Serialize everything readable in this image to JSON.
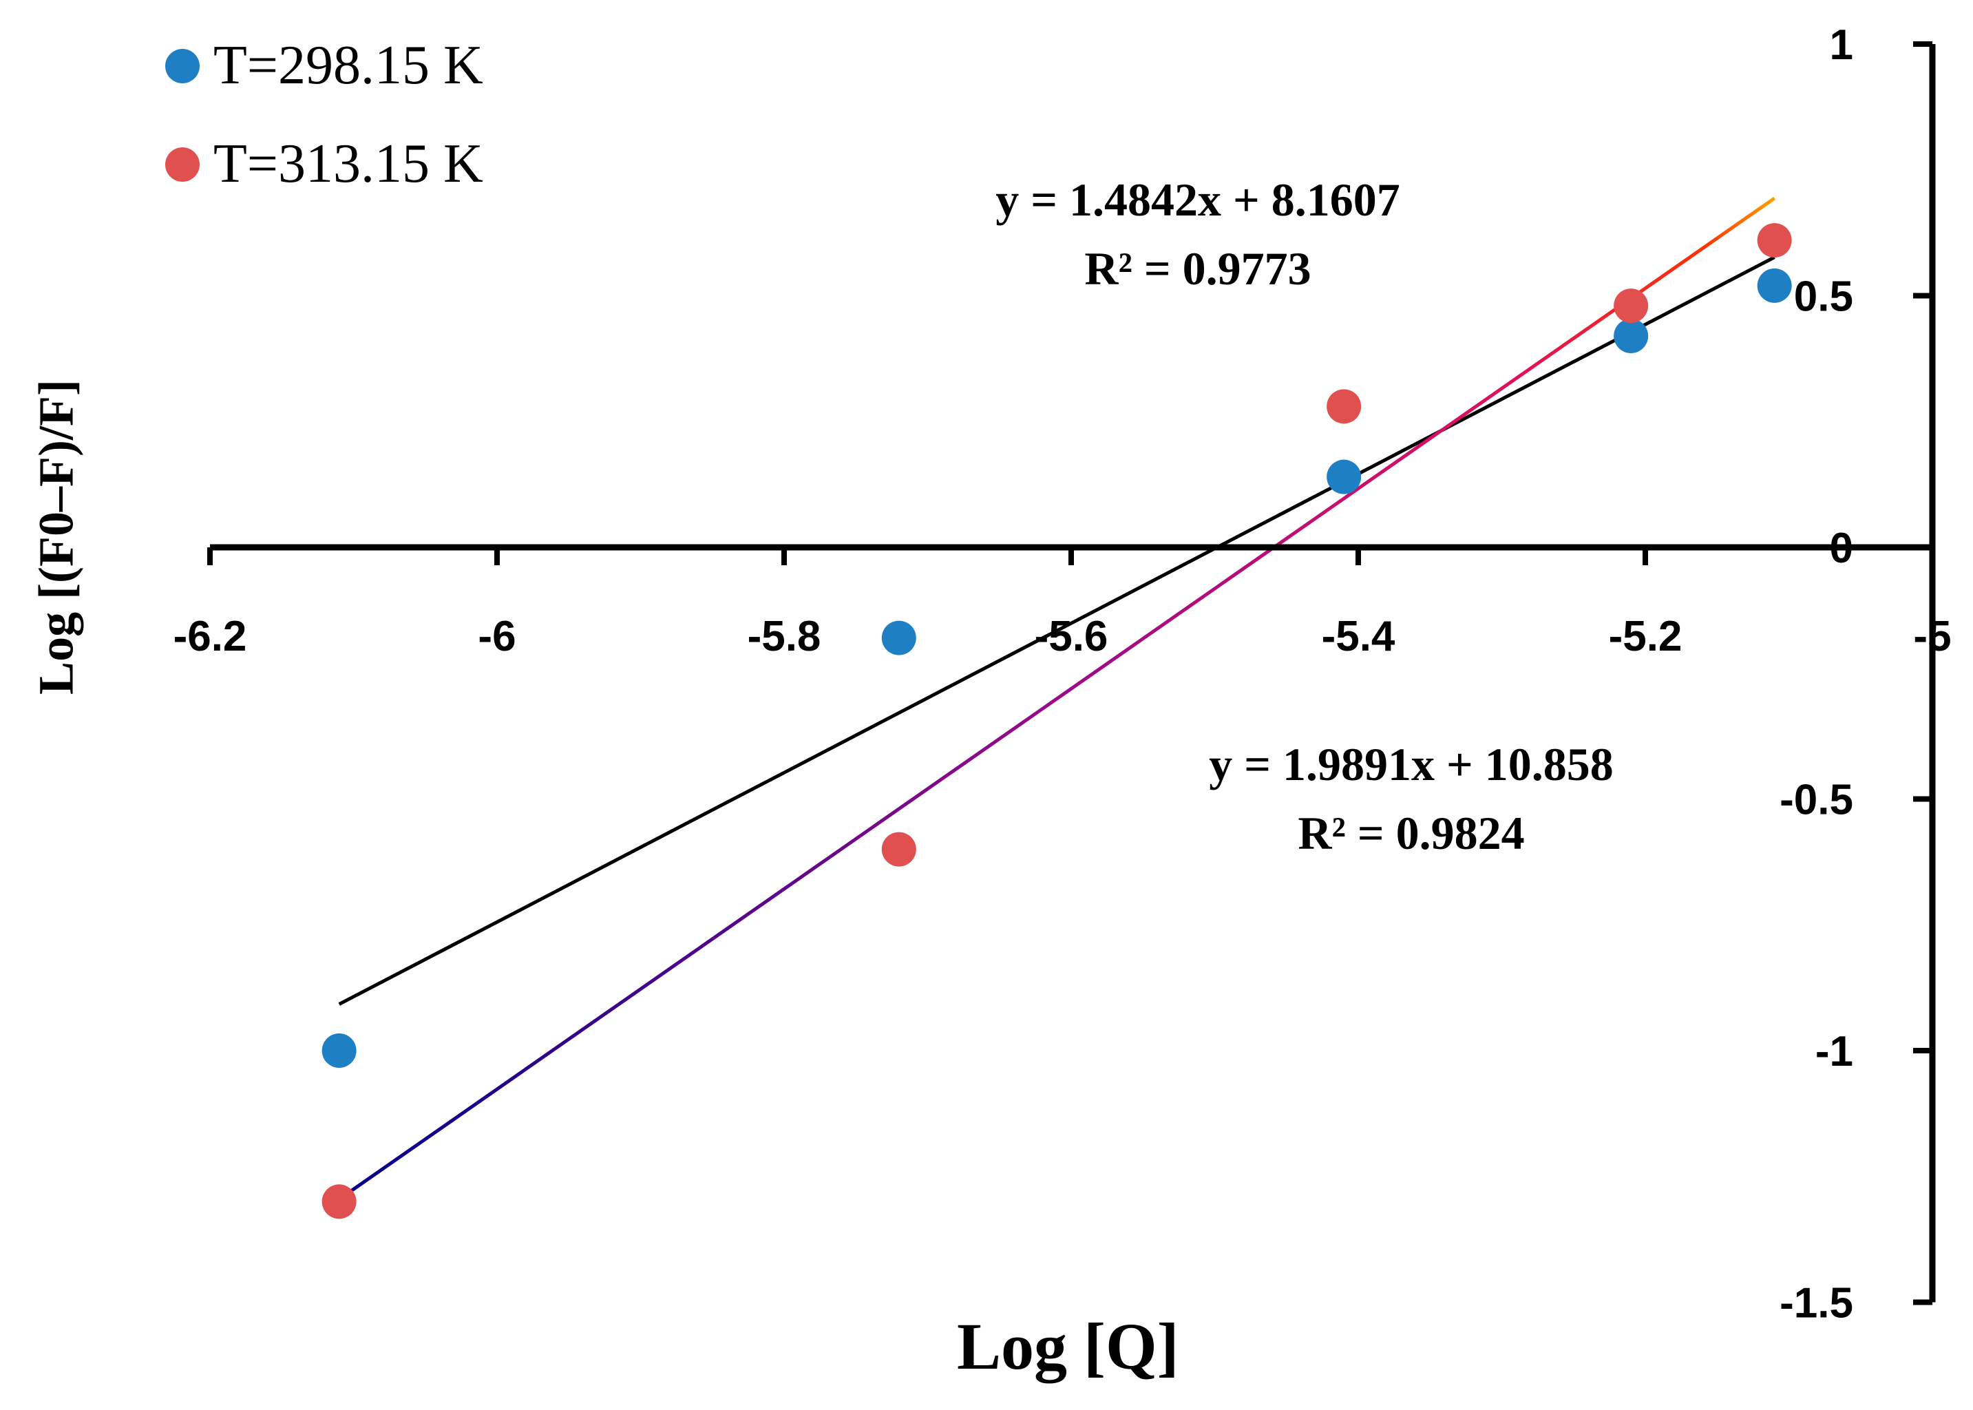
{
  "chart_data": {
    "type": "scatter",
    "xlabel": "Log [Q]",
    "ylabel": "Log [(F0–F)/F]",
    "xlim": [
      -6.2,
      -5.0
    ],
    "ylim": [
      -1.5,
      1.0
    ],
    "x_ticks": [
      "-6.2",
      "-6",
      "-5.8",
      "-5.6",
      "-5.4",
      "-5.2",
      "-5"
    ],
    "y_ticks": [
      "1",
      "0.5",
      "0",
      "-0.5",
      "-1",
      "-1.5"
    ],
    "legend_position": "top-left",
    "series": [
      {
        "name": "T=298.15 K",
        "color": "#1f7fc4",
        "x": [
          -6.11,
          -5.72,
          -5.41,
          -5.21,
          -5.11
        ],
        "y": [
          -1.0,
          -0.18,
          0.14,
          0.42,
          0.52
        ],
        "trendline": {
          "slope": 1.4842,
          "intercept": 8.1607,
          "equation": "y = 1.4842x + 8.1607",
          "r2": "R² = 0.9773",
          "color": "#000000"
        }
      },
      {
        "name": "T=313.15 K",
        "color": "#e0504e",
        "x": [
          -6.11,
          -5.72,
          -5.41,
          -5.21,
          -5.11
        ],
        "y": [
          -1.3,
          -0.6,
          0.28,
          0.48,
          0.61
        ],
        "trendline": {
          "slope": 1.9891,
          "intercept": 10.858,
          "equation": "y = 1.9891x + 10.858",
          "r2": "R² = 0.9824",
          "gradient": [
            "#00008b",
            "#c71585",
            "#ff4500",
            "#ffa500"
          ]
        }
      }
    ]
  }
}
